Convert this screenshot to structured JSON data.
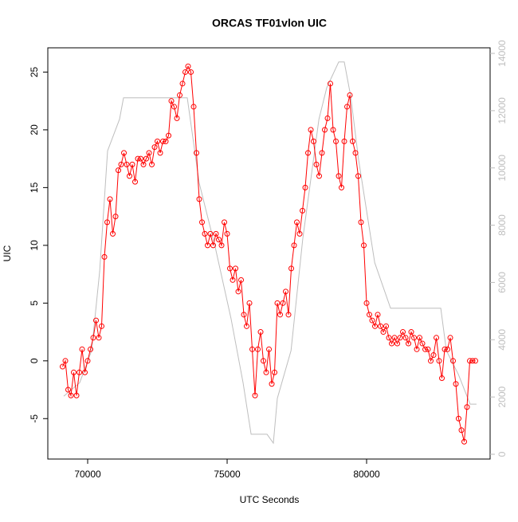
{
  "chart_data": {
    "type": "line",
    "title": "ORCAS TF01vlon UIC",
    "x_label": "UTC Seconds",
    "y_label": "UIC",
    "xlim": [
      68571,
      84428
    ],
    "ylim": [
      -8.5,
      27.1
    ],
    "y2lim": [
      -167,
      14195
    ],
    "xticks": [
      70000,
      75000,
      80000
    ],
    "yticks": [
      -5,
      0,
      5,
      10,
      15,
      20,
      25
    ],
    "y2ticks": [
      0,
      2000,
      4000,
      6000,
      8000,
      10000,
      12000,
      14000
    ],
    "series": [
      {
        "color": "#bebebe",
        "axis": "y2",
        "markers": false,
        "x": [
          69143,
          69714,
          70143,
          70430,
          70714,
          71143,
          71286,
          73570,
          74000,
          74570,
          75140,
          75570,
          75860,
          76430,
          76657,
          76800,
          77290,
          77710,
          78290,
          78570,
          79000,
          79200,
          79430,
          79710,
          80290,
          80860,
          82660,
          82860,
          83290,
          83710,
          83940
        ],
        "values": [
          2030,
          2500,
          3620,
          6400,
          10600,
          11700,
          12450,
          12450,
          9470,
          7240,
          4740,
          2500,
          700,
          700,
          390,
          1950,
          3620,
          7520,
          11700,
          12800,
          13700,
          13700,
          12500,
          10300,
          6690,
          5100,
          5100,
          3620,
          2790,
          1750,
          1750
        ]
      },
      {
        "color": "#ff0000",
        "axis": "y",
        "markers": true,
        "x": [
          69100,
          69200,
          69300,
          69400,
          69500,
          69600,
          69700,
          69800,
          69900,
          70000,
          70100,
          70200,
          70300,
          70400,
          70500,
          70600,
          70700,
          70800,
          70900,
          71000,
          71100,
          71200,
          71300,
          71400,
          71500,
          71600,
          71700,
          71800,
          71900,
          72000,
          72100,
          72200,
          72300,
          72400,
          72500,
          72600,
          72700,
          72800,
          72900,
          73000,
          73100,
          73200,
          73300,
          73400,
          73500,
          73600,
          73700,
          73800,
          73900,
          74000,
          74100,
          74200,
          74300,
          74400,
          74500,
          74600,
          74700,
          74800,
          74900,
          75000,
          75100,
          75200,
          75300,
          75400,
          75500,
          75600,
          75700,
          75800,
          75900,
          76000,
          76100,
          76200,
          76300,
          76400,
          76500,
          76600,
          76700,
          76800,
          76900,
          77000,
          77100,
          77200,
          77300,
          77400,
          77500,
          77600,
          77700,
          77800,
          77900,
          78000,
          78100,
          78200,
          78300,
          78400,
          78500,
          78600,
          78700,
          78800,
          78900,
          79000,
          79100,
          79200,
          79300,
          79400,
          79500,
          79600,
          79700,
          79800,
          79900,
          80000,
          80100,
          80200,
          80300,
          80400,
          80500,
          80600,
          80700,
          80800,
          80900,
          81000,
          81100,
          81200,
          81300,
          81400,
          81500,
          81600,
          81700,
          81800,
          81900,
          82000,
          82100,
          82200,
          82300,
          82400,
          82500,
          82600,
          82700,
          82800,
          82900,
          83000,
          83100,
          83200,
          83300,
          83400,
          83500,
          83600,
          83700,
          83800,
          83900
        ],
        "values": [
          -0.5,
          0,
          -2.5,
          -3,
          -1,
          -3,
          -1,
          1,
          -1,
          0,
          1,
          2,
          3.5,
          2,
          3,
          9,
          12,
          14,
          11,
          12.5,
          16.5,
          17,
          18,
          17,
          16,
          17,
          15.5,
          17.5,
          17.5,
          17,
          17.5,
          18,
          17,
          18.5,
          19,
          18,
          19,
          19,
          19.5,
          22.5,
          22,
          21,
          23,
          24,
          25,
          25.5,
          25,
          22,
          18,
          14,
          12,
          11,
          10,
          11,
          10,
          11,
          10.5,
          10,
          12,
          11,
          8,
          7,
          8,
          6,
          7,
          4,
          3,
          5,
          1,
          -3,
          1,
          2.5,
          0,
          -1,
          1,
          -2,
          -1,
          5,
          4,
          5,
          6,
          4,
          8,
          10,
          12,
          11,
          13,
          15,
          18,
          20,
          19,
          17,
          16,
          18,
          20,
          21,
          24,
          20,
          19,
          16,
          15,
          19,
          22,
          23,
          19,
          18,
          16,
          12,
          10,
          5,
          4,
          3.5,
          3,
          4,
          3,
          2.5,
          3,
          2,
          1.5,
          2,
          1.5,
          2,
          2.5,
          2,
          1.5,
          2.5,
          2,
          1,
          2,
          1.5,
          1,
          1,
          0,
          0.5,
          2,
          0,
          -1.5,
          1,
          1,
          2,
          0,
          -2,
          -5,
          -6,
          -7,
          -4,
          0,
          0,
          0
        ]
      }
    ]
  }
}
